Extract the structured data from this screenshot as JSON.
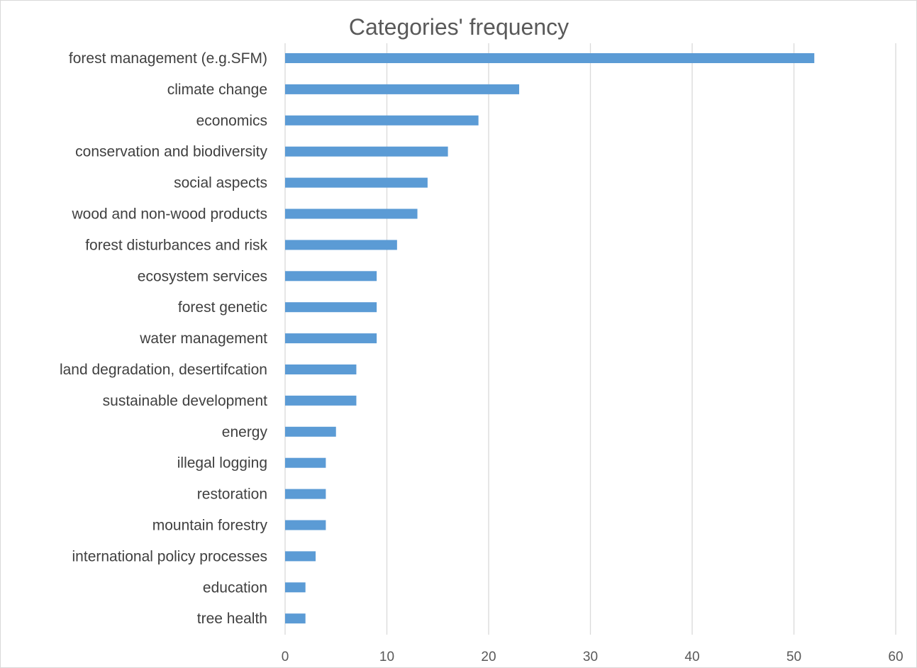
{
  "chart_data": {
    "type": "bar",
    "orientation": "horizontal",
    "title": "Categories' frequency",
    "xlabel": "",
    "ylabel": "",
    "categories": [
      "forest management (e.g.SFM)",
      "climate change",
      "economics",
      "conservation and biodiversity",
      "social aspects",
      "wood and non-wood products",
      "forest disturbances and risk",
      "ecosystem services",
      "forest genetic",
      "water management",
      "land degradation, desertifcation",
      "sustainable development",
      "energy",
      "illegal logging",
      "restoration",
      "mountain forestry",
      "international policy processes",
      "education",
      "tree health"
    ],
    "values": [
      52,
      23,
      19,
      16,
      14,
      13,
      11,
      9,
      9,
      9,
      7,
      7,
      5,
      4,
      4,
      4,
      3,
      2,
      2
    ],
    "xlim": [
      0,
      60
    ],
    "xticks": [
      "0",
      "10",
      "20",
      "30",
      "40",
      "50",
      "60"
    ],
    "grid": true,
    "legend": "none",
    "bar_color": "#5b9bd5"
  }
}
